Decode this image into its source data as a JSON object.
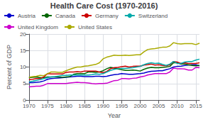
{
  "chart_data": {
    "type": "line",
    "title": "Health Care Cost (1970-2016)",
    "xlabel": "Year",
    "ylabel": "Percent of GDP",
    "x": [
      1970,
      1971,
      1972,
      1973,
      1974,
      1975,
      1976,
      1977,
      1978,
      1979,
      1980,
      1981,
      1982,
      1983,
      1984,
      1985,
      1986,
      1987,
      1988,
      1989,
      1990,
      1991,
      1992,
      1993,
      1994,
      1995,
      1996,
      1997,
      1998,
      1999,
      2000,
      2001,
      2002,
      2003,
      2004,
      2005,
      2006,
      2007,
      2008,
      2009,
      2010,
      2011,
      2012,
      2013,
      2014,
      2015,
      2016
    ],
    "xlim": [
      1970,
      2016
    ],
    "xticks": [
      1970,
      1975,
      1980,
      1985,
      1990,
      1995,
      2000,
      2005,
      2010,
      2015
    ],
    "ylim": [
      0,
      20
    ],
    "yticks": [
      0,
      5,
      10,
      15,
      20
    ],
    "grid": true,
    "legend": "upper left",
    "series": [
      {
        "name": "Austria",
        "color": "#0000cc",
        "values": [
          5.3,
          5.3,
          5.4,
          5.5,
          5.8,
          6.3,
          6.5,
          6.6,
          6.7,
          6.8,
          6.9,
          7.0,
          7.1,
          7.2,
          7.2,
          7.1,
          7.1,
          7.1,
          7.2,
          7.2,
          7.1,
          7.2,
          7.5,
          7.7,
          7.8,
          8.0,
          7.9,
          7.8,
          7.8,
          7.9,
          8.0,
          8.2,
          8.5,
          8.7,
          8.8,
          8.9,
          8.9,
          9.2,
          9.5,
          10.0,
          10.2,
          10.3,
          10.5,
          10.6,
          10.7,
          10.7,
          10.4
        ]
      },
      {
        "name": "Canada",
        "color": "#006600",
        "values": [
          6.8,
          6.9,
          7.0,
          6.8,
          6.8,
          7.0,
          7.0,
          7.0,
          7.0,
          6.9,
          7.0,
          7.1,
          7.8,
          8.0,
          8.0,
          8.0,
          8.5,
          8.5,
          8.4,
          8.5,
          8.9,
          9.5,
          9.9,
          9.7,
          9.4,
          9.2,
          9.0,
          9.0,
          9.1,
          9.0,
          8.8,
          9.3,
          9.7,
          9.9,
          9.8,
          9.8,
          9.9,
          10.0,
          10.2,
          11.3,
          11.3,
          10.9,
          10.9,
          10.7,
          10.5,
          10.4,
          10.5
        ]
      },
      {
        "name": "Germany",
        "color": "#cc0000",
        "values": [
          6.2,
          6.3,
          6.5,
          6.5,
          7.0,
          8.0,
          7.9,
          7.9,
          7.9,
          7.9,
          8.4,
          8.5,
          8.5,
          8.6,
          8.5,
          8.8,
          8.8,
          8.8,
          8.8,
          8.5,
          8.3,
          8.7,
          9.5,
          9.8,
          9.9,
          10.1,
          10.3,
          10.0,
          10.2,
          10.3,
          10.3,
          10.6,
          10.7,
          10.9,
          10.6,
          10.7,
          10.5,
          10.4,
          10.7,
          11.7,
          11.5,
          11.1,
          11.3,
          11.1,
          11.1,
          11.1,
          11.3
        ]
      },
      {
        "name": "Switzerland",
        "color": "#00aaaa",
        "values": [
          5.5,
          5.7,
          6.0,
          6.2,
          6.5,
          6.8,
          7.0,
          7.1,
          7.3,
          7.5,
          7.5,
          7.6,
          7.6,
          7.6,
          7.6,
          7.6,
          7.6,
          7.7,
          7.9,
          7.8,
          8.0,
          8.5,
          9.0,
          9.3,
          9.5,
          9.6,
          9.6,
          9.7,
          9.8,
          10.0,
          10.2,
          10.7,
          11.1,
          11.3,
          11.1,
          11.2,
          10.8,
          10.5,
          10.9,
          11.7,
          11.1,
          11.1,
          11.5,
          11.7,
          11.7,
          12.1,
          12.4
        ]
      },
      {
        "name": "United Kingdom",
        "color": "#cc00cc",
        "values": [
          4.0,
          4.1,
          4.2,
          4.2,
          4.5,
          5.0,
          5.0,
          5.0,
          5.0,
          5.0,
          5.0,
          5.2,
          5.3,
          5.4,
          5.3,
          5.3,
          5.2,
          5.0,
          4.9,
          5.0,
          5.0,
          5.1,
          5.5,
          5.9,
          6.0,
          6.5,
          6.5,
          6.4,
          6.6,
          6.7,
          7.0,
          7.2,
          7.6,
          7.8,
          8.0,
          8.0,
          8.0,
          8.0,
          8.5,
          9.7,
          9.5,
          9.5,
          9.4,
          9.1,
          9.1,
          9.9,
          9.8
        ]
      },
      {
        "name": "United States",
        "color": "#aaaa00",
        "values": [
          6.9,
          7.1,
          7.2,
          7.5,
          7.4,
          8.0,
          8.5,
          8.5,
          8.4,
          8.4,
          8.9,
          9.3,
          9.7,
          10.0,
          10.0,
          10.3,
          10.4,
          10.6,
          10.8,
          11.3,
          12.5,
          13.0,
          13.3,
          13.6,
          13.5,
          13.5,
          13.6,
          13.5,
          13.6,
          13.7,
          13.7,
          14.6,
          15.3,
          15.5,
          15.6,
          15.8,
          16.0,
          16.0,
          16.4,
          17.4,
          17.1,
          17.0,
          17.1,
          17.1,
          17.1,
          16.8,
          17.2
        ]
      }
    ]
  }
}
